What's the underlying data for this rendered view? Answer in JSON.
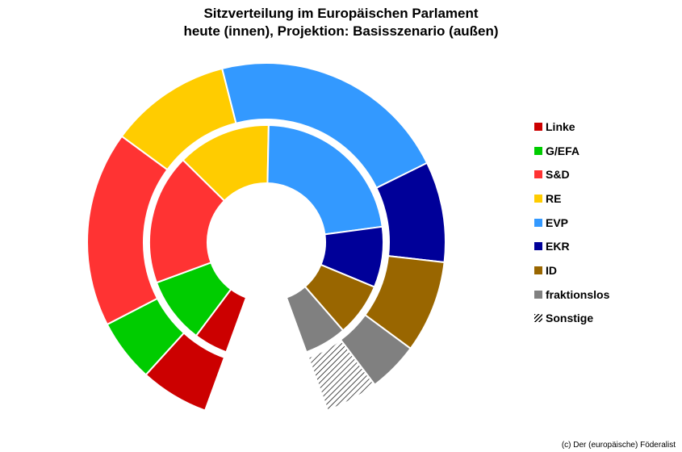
{
  "chart_data": {
    "type": "donut",
    "title_lines": [
      "Sitzverteilung im Europäischen Parlament",
      "heute (innen), Projektion: Basisszenario (außen)"
    ],
    "categories": [
      "Linke",
      "G/EFA",
      "S&D",
      "RE",
      "EVP",
      "EKR",
      "ID",
      "fraktionslos",
      "Sonstige"
    ],
    "colors": [
      "#cc0000",
      "#00cc00",
      "#ff3333",
      "#ffcc00",
      "#3399ff",
      "#000099",
      "#996600",
      "#808080",
      "hatch"
    ],
    "series": [
      {
        "name": "heute",
        "ring": "inner",
        "values": [
          37,
          72,
          142,
          102,
          178,
          66,
          58,
          46,
          0
        ]
      },
      {
        "name": "Projektion: Basisszenario",
        "ring": "outer",
        "values": [
          49,
          45,
          140,
          87,
          172,
          72,
          66,
          36,
          38
        ]
      }
    ],
    "legend_position": "right",
    "gap_at_bottom": true
  },
  "credit": "(c) Der (europäische) Föderalist"
}
